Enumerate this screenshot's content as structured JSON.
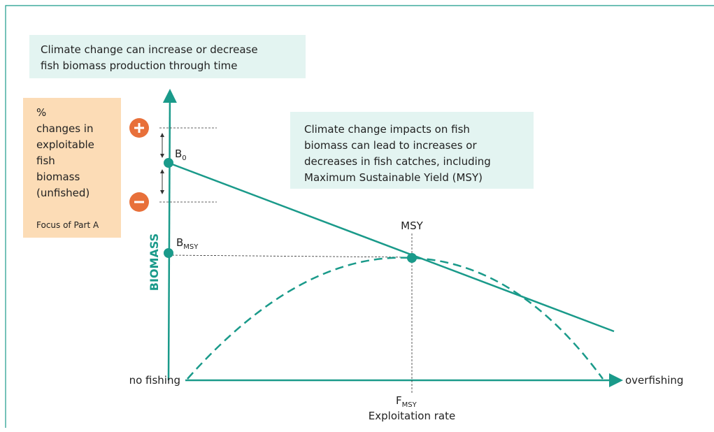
{
  "top_box": {
    "lines": [
      "Climate change can increase or decrease",
      "fish biomass production through time"
    ]
  },
  "side_box": {
    "lines": [
      "%",
      "changes in",
      "exploitable",
      "fish",
      "biomass",
      "(unfished)"
    ],
    "note": "Focus of Part A"
  },
  "right_box": {
    "lines": [
      "Climate change impacts on fish",
      "biomass can lead to increases or",
      "decreases in fish catches, including",
      "Maximum Sustainable Yield (MSY)"
    ]
  },
  "labels": {
    "b0": {
      "main": "B",
      "sub": "0"
    },
    "bmsy": {
      "main": "B",
      "sub": "MSY"
    },
    "msy": "MSY",
    "fmsy": {
      "main": "F",
      "sub": "MSY"
    },
    "x_axis": "Exploitation rate",
    "y_axis": "BIOMASS",
    "x_start": "no fishing",
    "x_end": "overfishing"
  }
}
